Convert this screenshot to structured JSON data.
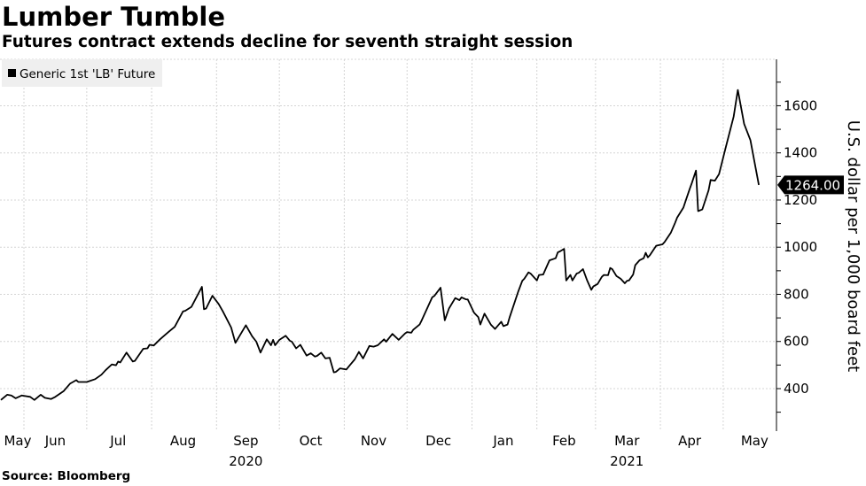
{
  "header": {
    "title": "Lumber Tumble",
    "subtitle": "Futures contract extends decline for seventh straight session"
  },
  "footer": {
    "source": "Source: Bloomberg"
  },
  "chart_data": {
    "type": "line",
    "title": "Lumber Tumble",
    "subtitle": "Futures contract extends decline for seventh straight session",
    "ylabel": "U.S. dollar per 1,000 board feet",
    "y_axis_side": "right",
    "ylim": [
      220,
      1800
    ],
    "y_ticks": [
      400,
      600,
      800,
      1000,
      1200,
      1400,
      1600
    ],
    "y_tick_labels": [
      "400",
      "600",
      "800",
      "1000",
      "1200",
      "1400",
      "1600"
    ],
    "x_month_labels": [
      {
        "label": "May",
        "date": "2020-05-16"
      },
      {
        "label": "Jun",
        "date": "2020-06-16"
      },
      {
        "label": "Jul",
        "date": "2020-07-16"
      },
      {
        "label": "Aug",
        "date": "2020-08-16"
      },
      {
        "label": "Sep",
        "date": "2020-09-15"
      },
      {
        "label": "Oct",
        "date": "2020-10-16"
      },
      {
        "label": "Nov",
        "date": "2020-11-15"
      },
      {
        "label": "Dec",
        "date": "2020-12-16"
      },
      {
        "label": "Jan",
        "date": "2021-01-16"
      },
      {
        "label": "Feb",
        "date": "2021-02-14"
      },
      {
        "label": "Mar",
        "date": "2021-03-16"
      },
      {
        "label": "Apr",
        "date": "2021-04-15"
      },
      {
        "label": "May",
        "date": "2021-05-16"
      }
    ],
    "x_year_labels": [
      {
        "label": "2020",
        "date": "2020-09-15"
      },
      {
        "label": "2021",
        "date": "2021-03-16"
      }
    ],
    "x_gridlines": [
      "2020-06-01",
      "2020-07-01",
      "2020-08-01",
      "2020-09-01",
      "2020-10-01",
      "2020-11-01",
      "2020-12-01",
      "2021-01-01",
      "2021-02-01",
      "2021-03-01",
      "2021-04-01",
      "2021-05-01"
    ],
    "xlim": [
      "2020-05-20",
      "2021-05-28"
    ],
    "grid": true,
    "legend_position": "top-left",
    "line_color": "#000000",
    "legend_bg": "#efefef",
    "last_value_label": "1264.00",
    "series": [
      {
        "name": "Generic 1st 'LB' Future",
        "points": [
          [
            "2020-05-21",
            352
          ],
          [
            "2020-05-24",
            374
          ],
          [
            "2020-05-26",
            371
          ],
          [
            "2020-05-28",
            359
          ],
          [
            "2020-05-31",
            371
          ],
          [
            "2020-06-04",
            365
          ],
          [
            "2020-06-06",
            352
          ],
          [
            "2020-06-09",
            374
          ],
          [
            "2020-06-11",
            361
          ],
          [
            "2020-06-14",
            356
          ],
          [
            "2020-06-16",
            365
          ],
          [
            "2020-06-20",
            390
          ],
          [
            "2020-06-23",
            421
          ],
          [
            "2020-06-26",
            436
          ],
          [
            "2020-06-27",
            428
          ],
          [
            "2020-07-01",
            428
          ],
          [
            "2020-07-05",
            440
          ],
          [
            "2020-07-08",
            459
          ],
          [
            "2020-07-10",
            478
          ],
          [
            "2020-07-13",
            503
          ],
          [
            "2020-07-15",
            499
          ],
          [
            "2020-07-16",
            515
          ],
          [
            "2020-07-17",
            511
          ],
          [
            "2020-07-20",
            553
          ],
          [
            "2020-07-23",
            515
          ],
          [
            "2020-07-24",
            518
          ],
          [
            "2020-07-28",
            569
          ],
          [
            "2020-07-30",
            571
          ],
          [
            "2020-07-31",
            586
          ],
          [
            "2020-08-02",
            583
          ],
          [
            "2020-08-05",
            609
          ],
          [
            "2020-08-09",
            640
          ],
          [
            "2020-08-12",
            662
          ],
          [
            "2020-08-16",
            728
          ],
          [
            "2020-08-17",
            730
          ],
          [
            "2020-08-20",
            747
          ],
          [
            "2020-08-25",
            832
          ],
          [
            "2020-08-26",
            737
          ],
          [
            "2020-08-27",
            740
          ],
          [
            "2020-08-30",
            794
          ],
          [
            "2020-09-02",
            759
          ],
          [
            "2020-09-04",
            728
          ],
          [
            "2020-09-08",
            659
          ],
          [
            "2020-09-10",
            594
          ],
          [
            "2020-09-15",
            669
          ],
          [
            "2020-09-18",
            622
          ],
          [
            "2020-09-20",
            599
          ],
          [
            "2020-09-22",
            553
          ],
          [
            "2020-09-25",
            609
          ],
          [
            "2020-09-27",
            584
          ],
          [
            "2020-09-28",
            607
          ],
          [
            "2020-09-29",
            584
          ],
          [
            "2020-10-01",
            607
          ],
          [
            "2020-10-04",
            624
          ],
          [
            "2020-10-06",
            603
          ],
          [
            "2020-10-07",
            599
          ],
          [
            "2020-10-09",
            571
          ],
          [
            "2020-10-11",
            586
          ],
          [
            "2020-10-14",
            540
          ],
          [
            "2020-10-16",
            550
          ],
          [
            "2020-10-18",
            536
          ],
          [
            "2020-10-19",
            539
          ],
          [
            "2020-10-21",
            553
          ],
          [
            "2020-10-23",
            528
          ],
          [
            "2020-10-25",
            531
          ],
          [
            "2020-10-27",
            469
          ],
          [
            "2020-10-28",
            471
          ],
          [
            "2020-10-30",
            486
          ],
          [
            "2020-11-02",
            481
          ],
          [
            "2020-11-04",
            503
          ],
          [
            "2020-11-06",
            524
          ],
          [
            "2020-11-08",
            556
          ],
          [
            "2020-11-10",
            528
          ],
          [
            "2020-11-13",
            581
          ],
          [
            "2020-11-15",
            578
          ],
          [
            "2020-11-17",
            584
          ],
          [
            "2020-11-20",
            609
          ],
          [
            "2020-11-21",
            599
          ],
          [
            "2020-11-24",
            632
          ],
          [
            "2020-11-27",
            607
          ],
          [
            "2020-11-30",
            634
          ],
          [
            "2020-12-01",
            640
          ],
          [
            "2020-12-03",
            637
          ],
          [
            "2020-12-04",
            650
          ],
          [
            "2020-12-07",
            672
          ],
          [
            "2020-12-08",
            690
          ],
          [
            "2020-12-13",
            787
          ],
          [
            "2020-12-14",
            793
          ],
          [
            "2020-12-17",
            828
          ],
          [
            "2020-12-19",
            690
          ],
          [
            "2020-12-21",
            740
          ],
          [
            "2020-12-24",
            784
          ],
          [
            "2020-12-26",
            775
          ],
          [
            "2020-12-27",
            787
          ],
          [
            "2020-12-29",
            779
          ],
          [
            "2020-12-30",
            778
          ],
          [
            "2021-01-02",
            722
          ],
          [
            "2021-01-04",
            703
          ],
          [
            "2021-01-05",
            672
          ],
          [
            "2021-01-07",
            718
          ],
          [
            "2021-01-10",
            672
          ],
          [
            "2021-01-12",
            653
          ],
          [
            "2021-01-15",
            684
          ],
          [
            "2021-01-16",
            665
          ],
          [
            "2021-01-18",
            672
          ],
          [
            "2021-01-19",
            703
          ],
          [
            "2021-01-23",
            809
          ],
          [
            "2021-01-25",
            857
          ],
          [
            "2021-01-26",
            866
          ],
          [
            "2021-01-28",
            893
          ],
          [
            "2021-01-29",
            888
          ],
          [
            "2021-02-01",
            859
          ],
          [
            "2021-02-02",
            882
          ],
          [
            "2021-02-04",
            884
          ],
          [
            "2021-02-06",
            924
          ],
          [
            "2021-02-07",
            944
          ],
          [
            "2021-02-10",
            953
          ],
          [
            "2021-02-11",
            978
          ],
          [
            "2021-02-12",
            982
          ],
          [
            "2021-02-14",
            993
          ],
          [
            "2021-02-15",
            859
          ],
          [
            "2021-02-17",
            882
          ],
          [
            "2021-02-18",
            859
          ],
          [
            "2021-02-20",
            888
          ],
          [
            "2021-02-21",
            891
          ],
          [
            "2021-02-23",
            907
          ],
          [
            "2021-02-25",
            859
          ],
          [
            "2021-02-27",
            819
          ],
          [
            "2021-02-28",
            834
          ],
          [
            "2021-03-02",
            844
          ],
          [
            "2021-03-04",
            874
          ],
          [
            "2021-03-05",
            882
          ],
          [
            "2021-03-07",
            881
          ],
          [
            "2021-03-08",
            912
          ],
          [
            "2021-03-09",
            907
          ],
          [
            "2021-03-11",
            878
          ],
          [
            "2021-03-13",
            866
          ],
          [
            "2021-03-15",
            847
          ],
          [
            "2021-03-16",
            857
          ],
          [
            "2021-03-17",
            859
          ],
          [
            "2021-03-19",
            884
          ],
          [
            "2021-03-20",
            924
          ],
          [
            "2021-03-22",
            944
          ],
          [
            "2021-03-24",
            953
          ],
          [
            "2021-03-25",
            976
          ],
          [
            "2021-03-26",
            957
          ],
          [
            "2021-03-27",
            966
          ],
          [
            "2021-03-30",
            1006
          ],
          [
            "2021-04-02",
            1012
          ],
          [
            "2021-04-03",
            1022
          ],
          [
            "2021-04-06",
            1062
          ],
          [
            "2021-04-08",
            1103
          ],
          [
            "2021-04-09",
            1125
          ],
          [
            "2021-04-12",
            1168
          ],
          [
            "2021-04-13",
            1195
          ],
          [
            "2021-04-15",
            1247
          ],
          [
            "2021-04-16",
            1272
          ],
          [
            "2021-04-18",
            1325
          ],
          [
            "2021-04-19",
            1153
          ],
          [
            "2021-04-21",
            1160
          ],
          [
            "2021-04-24",
            1241
          ],
          [
            "2021-04-25",
            1285
          ],
          [
            "2021-04-27",
            1282
          ],
          [
            "2021-04-29",
            1310
          ],
          [
            "2021-05-02",
            1416
          ],
          [
            "2021-05-06",
            1554
          ],
          [
            "2021-05-08",
            1667
          ],
          [
            "2021-05-11",
            1523
          ],
          [
            "2021-05-14",
            1454
          ],
          [
            "2021-05-16",
            1360
          ],
          [
            "2021-05-18",
            1264
          ]
        ]
      }
    ]
  }
}
